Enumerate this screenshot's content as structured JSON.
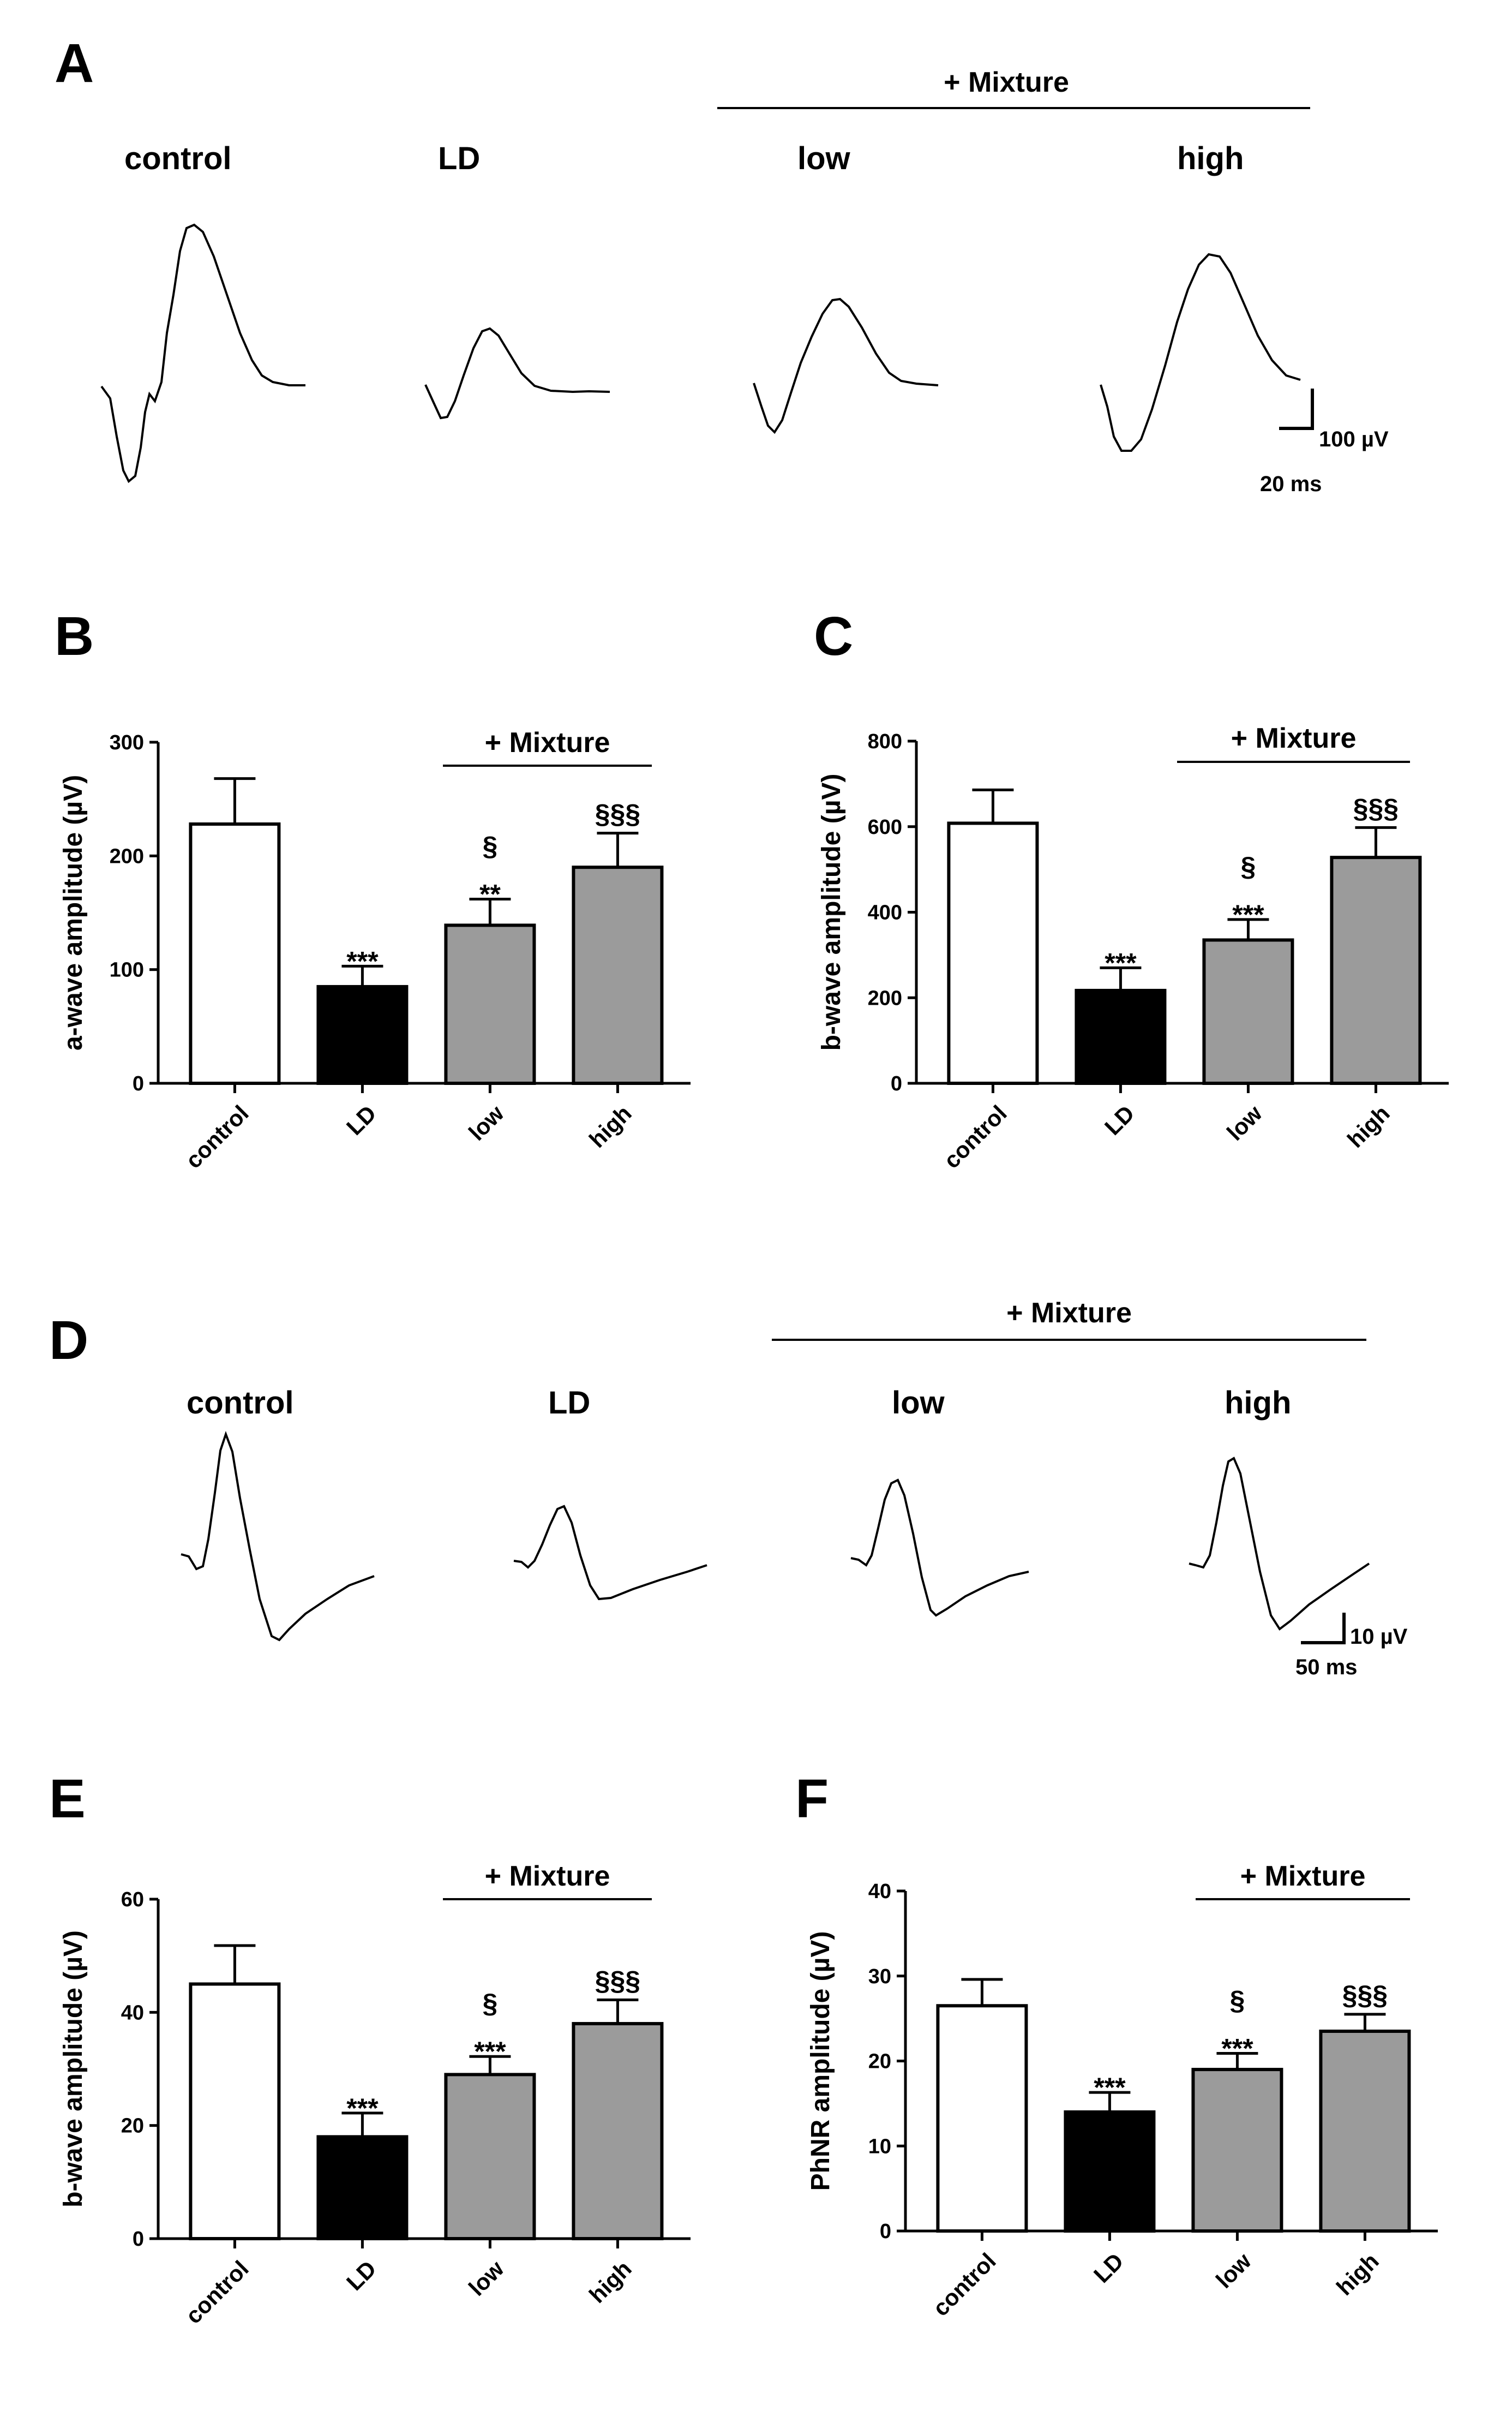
{
  "panels": {
    "A": {
      "letter": "A",
      "mixture_label": "+ Mixture",
      "groups": [
        "control",
        "LD",
        "low",
        "high"
      ],
      "scale_amplitude": "100 µV",
      "scale_time": "20 ms"
    },
    "D": {
      "letter": "D",
      "mixture_label": "+ Mixture",
      "groups": [
        "control",
        "LD",
        "low",
        "high"
      ],
      "scale_amplitude": "10 µV",
      "scale_time": "50 ms"
    }
  },
  "colors": {
    "control": "#ffffff",
    "LD": "#000000",
    "mixture": "#9b9b9b",
    "axis": "#000000"
  },
  "chart_data": [
    {
      "panel": "B",
      "type": "bar",
      "ylabel": "a-wave amplitude (µV)",
      "categories": [
        "control",
        "LD",
        "low",
        "high"
      ],
      "values": [
        228,
        85,
        139,
        190
      ],
      "errors": [
        40,
        18,
        23,
        30
      ],
      "ylim": [
        0,
        300
      ],
      "yticks": [
        0,
        100,
        200,
        300
      ],
      "significance": [
        [],
        [
          "***"
        ],
        [
          "§",
          "**"
        ],
        [
          "§§§"
        ]
      ],
      "mixture_label": "+ Mixture"
    },
    {
      "panel": "C",
      "type": "bar",
      "ylabel": "b-wave amplitude (µV)",
      "categories": [
        "control",
        "LD",
        "low",
        "high"
      ],
      "values": [
        608,
        217,
        335,
        528
      ],
      "errors": [
        78,
        53,
        48,
        70
      ],
      "ylim": [
        0,
        800
      ],
      "yticks": [
        0,
        200,
        400,
        600,
        800
      ],
      "significance": [
        [],
        [
          "***"
        ],
        [
          "§",
          "***"
        ],
        [
          "§§§"
        ]
      ],
      "mixture_label": "+ Mixture"
    },
    {
      "panel": "E",
      "type": "bar",
      "ylabel": "b-wave amplitude (µV)",
      "categories": [
        "control",
        "LD",
        "low",
        "high"
      ],
      "values": [
        45,
        18,
        29,
        38
      ],
      "errors": [
        6.8,
        4.2,
        3.2,
        4.2
      ],
      "ylim": [
        0,
        60
      ],
      "yticks": [
        0,
        20,
        40,
        60
      ],
      "significance": [
        [],
        [
          "***"
        ],
        [
          "§",
          "***"
        ],
        [
          "§§§"
        ]
      ],
      "mixture_label": "+ Mixture"
    },
    {
      "panel": "F",
      "type": "bar",
      "ylabel": "PhNR amplitude (µV)",
      "categories": [
        "control",
        "LD",
        "low",
        "high"
      ],
      "values": [
        26.5,
        14,
        19,
        23.5
      ],
      "errors": [
        3.1,
        2.3,
        1.9,
        2.0
      ],
      "ylim": [
        0,
        40
      ],
      "yticks": [
        0,
        10,
        20,
        30,
        40
      ],
      "significance": [
        [],
        [
          "***"
        ],
        [
          "§",
          "***"
        ],
        [
          "§§§"
        ]
      ],
      "mixture_label": "+ Mixture"
    }
  ]
}
